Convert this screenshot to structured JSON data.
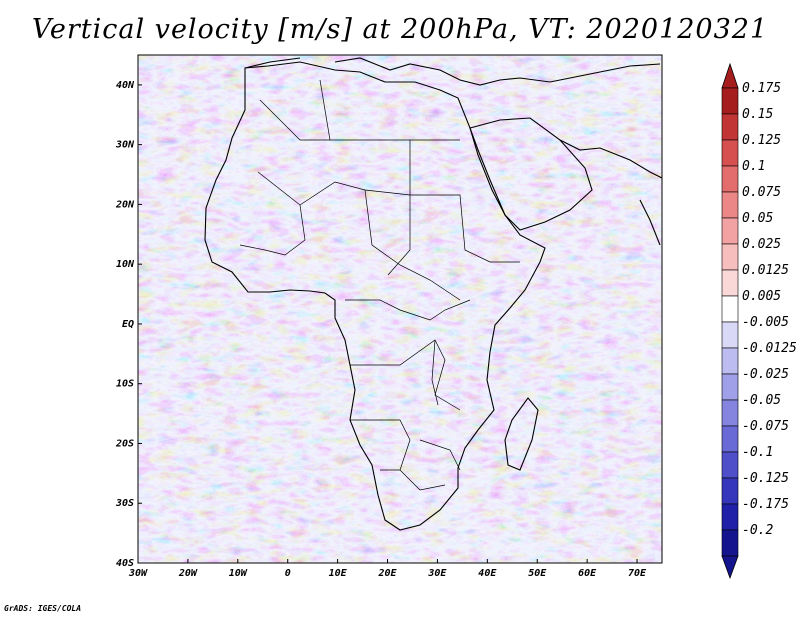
{
  "title": "Vertical velocity [m/s] at 200hPa, VT: 2020120321",
  "credit": "GrADS: IGES/COLA",
  "map": {
    "lat_range": [
      -40,
      45
    ],
    "lon_range": [
      -30,
      75
    ],
    "lat_labels": [
      "40N",
      "30N",
      "20N",
      "10N",
      "EQ",
      "10S",
      "20S",
      "30S",
      "40S"
    ],
    "lat_values": [
      40,
      30,
      20,
      10,
      0,
      -10,
      -20,
      -30,
      -40
    ],
    "lon_labels": [
      "30W",
      "20W",
      "10W",
      "0",
      "10E",
      "20E",
      "30E",
      "40E",
      "50E",
      "60E",
      "70E"
    ],
    "lon_values": [
      -30,
      -20,
      -10,
      0,
      10,
      20,
      30,
      40,
      50,
      60,
      70
    ]
  },
  "colorbar": {
    "labels": [
      "0.175",
      "0.15",
      "0.125",
      "0.1",
      "0.075",
      "0.05",
      "0.025",
      "0.0125",
      "0.005",
      "-0.005",
      "-0.0125",
      "-0.025",
      "-0.05",
      "-0.075",
      "-0.1",
      "-0.125",
      "-0.175",
      "-0.2"
    ],
    "colors": [
      "#a51d1d",
      "#c23535",
      "#d65050",
      "#e36c6c",
      "#ec8787",
      "#f2a2a2",
      "#f7bebe",
      "#fbd8d8",
      "#ffffff",
      "#d9d9f7",
      "#bcbcf0",
      "#a0a0e8",
      "#8585e0",
      "#6a6ad6",
      "#4f4fca",
      "#3636bc",
      "#2020a8",
      "#14148e"
    ]
  }
}
